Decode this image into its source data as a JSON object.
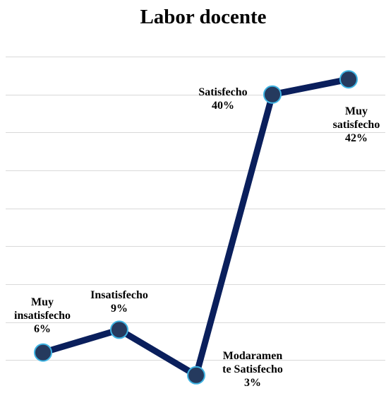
{
  "chart_data": {
    "type": "line",
    "title": "Labor docente",
    "xlabel": "",
    "ylabel": "",
    "grid": true,
    "legend": "none",
    "ylim": [
      0,
      45
    ],
    "categories": [
      "Muy insatisfecho",
      "Insatisfecho",
      "Modaramente Satisfecho",
      "Satisfecho",
      "Muy satisfecho"
    ],
    "series": [
      {
        "values": [
          6,
          9,
          3,
          40,
          42
        ],
        "color": "#0a1f5c",
        "marker_fill": "#253a5e",
        "marker_edge": "#3fb4e3"
      }
    ],
    "data_labels": [
      [
        "Muy",
        "insatisfecho",
        "6%"
      ],
      [
        "Insatisfecho",
        "9%"
      ],
      [
        "Modaramen",
        "te Satisfecho",
        "3%"
      ],
      [
        "Satisfecho",
        "40%"
      ],
      [
        "Muy",
        "satisfecho",
        "42%"
      ]
    ]
  }
}
